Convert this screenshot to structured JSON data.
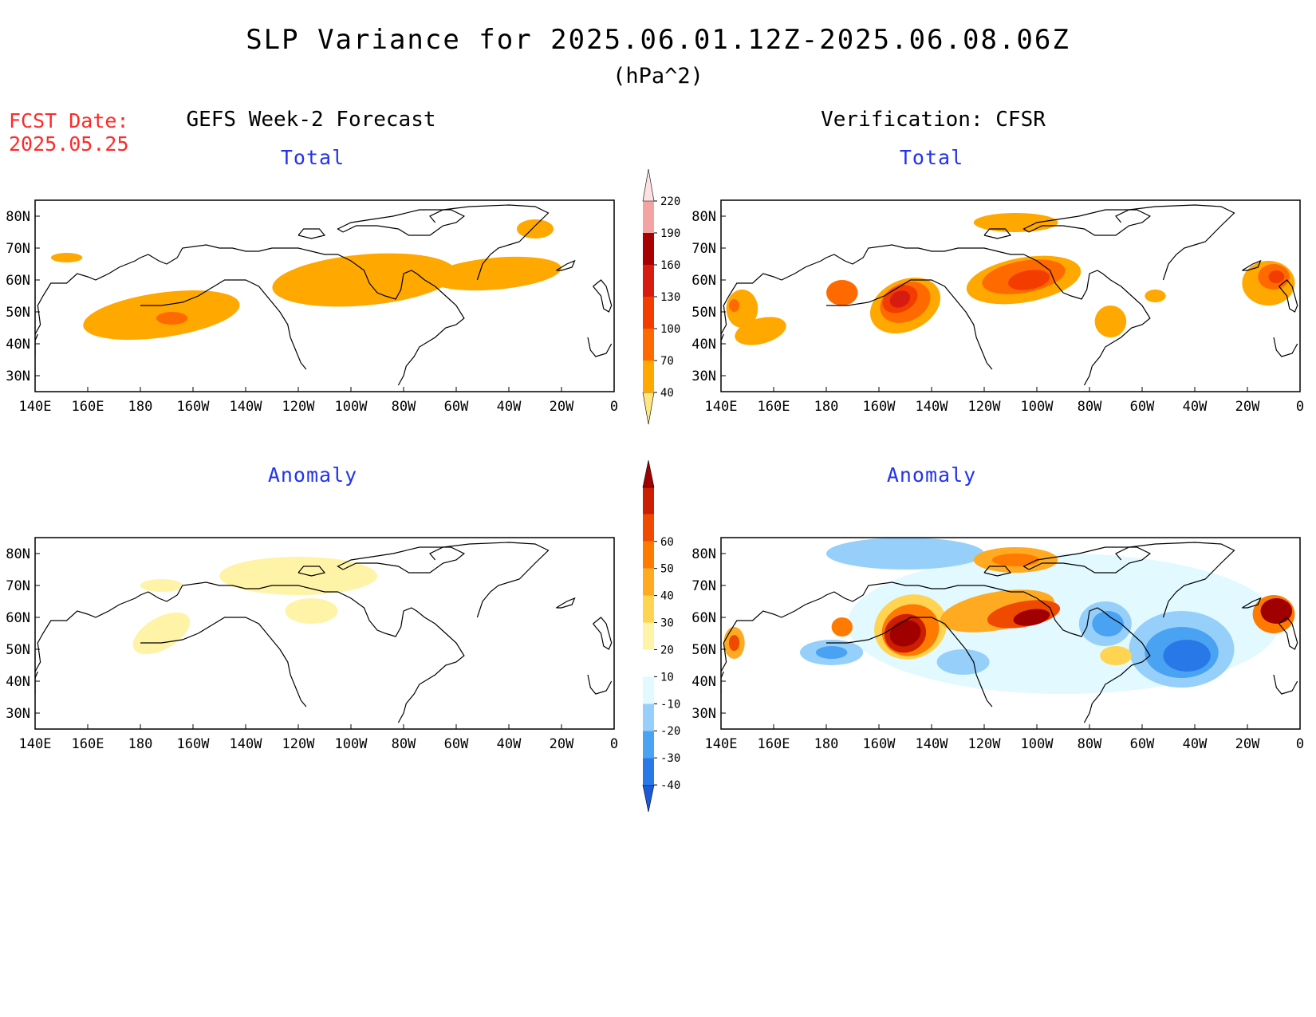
{
  "title": "SLP Variance for 2025.06.01.12Z-2025.06.08.06Z",
  "units": "(hPa^2)",
  "fcst_date": {
    "label": "FCST Date:",
    "value": "2025.05.25"
  },
  "columns": {
    "left": "GEFS Week-2 Forecast",
    "right": "Verification: CFSR"
  },
  "panel_titles": {
    "total": "Total",
    "anomaly": "Anomaly"
  },
  "lon_ticks": [
    "140E",
    "160E",
    "180",
    "160W",
    "140W",
    "120W",
    "100W",
    "80W",
    "60W",
    "40W",
    "20W",
    "0"
  ],
  "lat_ticks": [
    "80N",
    "70N",
    "60N",
    "50N",
    "40N",
    "30N"
  ],
  "colorbars": {
    "total": {
      "levels": [
        "40",
        "70",
        "100",
        "130",
        "160",
        "190",
        "220"
      ],
      "colors": [
        "#ffe680",
        "#ffa800",
        "#ff6a00",
        "#f23c00",
        "#d81b10",
        "#a80000",
        "#f4a3a3",
        "#fde0e0"
      ]
    },
    "anomaly": {
      "levels": [
        "-40",
        "-30",
        "-20",
        "-10",
        "10",
        "20",
        "30",
        "40",
        "50",
        "60"
      ],
      "colors": [
        "#1a5ad8",
        "#2878e8",
        "#4aa3f2",
        "#96d0fa",
        "#e1f9ff",
        "#ffffff",
        "#fff3a8",
        "#ffd450",
        "#ffaa20",
        "#ff7a00",
        "#ef4a00",
        "#cc1e00",
        "#a00000"
      ]
    }
  },
  "maps": {
    "gefs_total": {
      "blobs": [
        {
          "lon": -172,
          "lat": 49,
          "rx": 30,
          "ry": 7,
          "rot": -8,
          "level": 1
        },
        {
          "lon": -168,
          "lat": 48,
          "rx": 6,
          "ry": 2,
          "rot": 0,
          "level": 2
        },
        {
          "lon": -95,
          "lat": 60,
          "rx": 35,
          "ry": 8,
          "rot": -5,
          "level": 1
        },
        {
          "lon": -45,
          "lat": 62,
          "rx": 25,
          "ry": 5,
          "rot": -5,
          "level": 1
        },
        {
          "lon": -30,
          "lat": 76,
          "rx": 7,
          "ry": 3,
          "rot": 0,
          "level": 1
        },
        {
          "lon": 152,
          "lat": 67,
          "rx": 6,
          "ry": 1.5,
          "rot": 0,
          "level": 1
        }
      ]
    },
    "cfsr_total": {
      "blobs": [
        {
          "lon": -150,
          "lat": 52,
          "rx": 14,
          "ry": 8,
          "rot": -25,
          "level": 1
        },
        {
          "lon": -150,
          "lat": 53,
          "rx": 10,
          "ry": 6,
          "rot": -25,
          "level": 2
        },
        {
          "lon": -152,
          "lat": 54,
          "rx": 7,
          "ry": 4,
          "rot": -25,
          "level": 3
        },
        {
          "lon": -152,
          "lat": 54,
          "rx": 4,
          "ry": 2.5,
          "rot": -25,
          "level": 4
        },
        {
          "lon": -105,
          "lat": 60,
          "rx": 22,
          "ry": 7,
          "rot": -10,
          "level": 1
        },
        {
          "lon": -105,
          "lat": 61,
          "rx": 16,
          "ry": 5,
          "rot": -10,
          "level": 2
        },
        {
          "lon": -103,
          "lat": 60,
          "rx": 8,
          "ry": 3,
          "rot": -10,
          "level": 3
        },
        {
          "lon": -108,
          "lat": 78,
          "rx": 16,
          "ry": 3,
          "rot": 0,
          "level": 1
        },
        {
          "lon": -174,
          "lat": 56,
          "rx": 6,
          "ry": 4,
          "rot": 0,
          "level": 2
        },
        {
          "lon": 148,
          "lat": 51,
          "rx": 6,
          "ry": 6,
          "rot": 0,
          "level": 1
        },
        {
          "lon": 145,
          "lat": 52,
          "rx": 2,
          "ry": 2,
          "rot": 0,
          "level": 2
        },
        {
          "lon": 155,
          "lat": 44,
          "rx": 10,
          "ry": 4,
          "rot": -15,
          "level": 1
        },
        {
          "lon": -12,
          "lat": 59,
          "rx": 10,
          "ry": 7,
          "rot": 0,
          "level": 1
        },
        {
          "lon": -10,
          "lat": 61,
          "rx": 6,
          "ry": 4,
          "rot": 0,
          "level": 2
        },
        {
          "lon": -9,
          "lat": 61,
          "rx": 3,
          "ry": 2,
          "rot": 0,
          "level": 3
        },
        {
          "lon": -72,
          "lat": 47,
          "rx": 6,
          "ry": 5,
          "rot": 0,
          "level": 1
        },
        {
          "lon": -55,
          "lat": 55,
          "rx": 4,
          "ry": 2,
          "rot": 0,
          "level": 1
        }
      ]
    },
    "gefs_anomaly": {
      "blobs": [
        {
          "lon": -120,
          "lat": 73,
          "rx": 30,
          "ry": 6,
          "rot": 0,
          "level": 6
        },
        {
          "lon": -115,
          "lat": 62,
          "rx": 10,
          "ry": 4,
          "rot": 0,
          "level": 6
        },
        {
          "lon": -172,
          "lat": 55,
          "rx": 12,
          "ry": 5,
          "rot": -30,
          "level": 6
        },
        {
          "lon": -172,
          "lat": 70,
          "rx": 8,
          "ry": 2,
          "rot": 0,
          "level": 6
        }
      ]
    },
    "cfsr_anomaly": {
      "blobs": [
        {
          "lon": -90,
          "lat": 58,
          "rx": 82,
          "ry": 22,
          "rot": 0,
          "level": 4
        },
        {
          "lon": -45,
          "lat": 50,
          "rx": 20,
          "ry": 12,
          "rot": 0,
          "level": 3
        },
        {
          "lon": -45,
          "lat": 49,
          "rx": 14,
          "ry": 8,
          "rot": 0,
          "level": 2
        },
        {
          "lon": -43,
          "lat": 48,
          "rx": 9,
          "ry": 5,
          "rot": 0,
          "level": 1
        },
        {
          "lon": -74,
          "lat": 58,
          "rx": 10,
          "ry": 7,
          "rot": 0,
          "level": 3
        },
        {
          "lon": -73,
          "lat": 58,
          "rx": 6,
          "ry": 4,
          "rot": 0,
          "level": 2
        },
        {
          "lon": -150,
          "lat": 80,
          "rx": 30,
          "ry": 5,
          "rot": 0,
          "level": 3
        },
        {
          "lon": -178,
          "lat": 49,
          "rx": 12,
          "ry": 4,
          "rot": 0,
          "level": 3
        },
        {
          "lon": -178,
          "lat": 49,
          "rx": 6,
          "ry": 2,
          "rot": 0,
          "level": 2
        },
        {
          "lon": -128,
          "lat": 46,
          "rx": 10,
          "ry": 4,
          "rot": 0,
          "level": 3
        },
        {
          "lon": -148,
          "lat": 57,
          "rx": 14,
          "ry": 10,
          "rot": -20,
          "level": 7
        },
        {
          "lon": -148,
          "lat": 56,
          "rx": 11,
          "ry": 8,
          "rot": -20,
          "level": 9
        },
        {
          "lon": -150,
          "lat": 55,
          "rx": 8,
          "ry": 6,
          "rot": -20,
          "level": 11
        },
        {
          "lon": -150,
          "lat": 55,
          "rx": 6,
          "ry": 4,
          "rot": -20,
          "level": 12
        },
        {
          "lon": -115,
          "lat": 62,
          "rx": 22,
          "ry": 6,
          "rot": -10,
          "level": 8
        },
        {
          "lon": -105,
          "lat": 61,
          "rx": 14,
          "ry": 4,
          "rot": -10,
          "level": 10
        },
        {
          "lon": -102,
          "lat": 60,
          "rx": 7,
          "ry": 2.5,
          "rot": -10,
          "level": 12
        },
        {
          "lon": -108,
          "lat": 78,
          "rx": 16,
          "ry": 4,
          "rot": 0,
          "level": 8
        },
        {
          "lon": -108,
          "lat": 78,
          "rx": 9,
          "ry": 2,
          "rot": 0,
          "level": 9
        },
        {
          "lon": -10,
          "lat": 61,
          "rx": 8,
          "ry": 6,
          "rot": 0,
          "level": 9
        },
        {
          "lon": -9,
          "lat": 62,
          "rx": 6,
          "ry": 4,
          "rot": 0,
          "level": 12
        },
        {
          "lon": 145,
          "lat": 52,
          "rx": 4,
          "ry": 5,
          "rot": 0,
          "level": 8
        },
        {
          "lon": 145,
          "lat": 52,
          "rx": 2,
          "ry": 2.5,
          "rot": 0,
          "level": 10
        },
        {
          "lon": -174,
          "lat": 57,
          "rx": 4,
          "ry": 3,
          "rot": 0,
          "level": 9
        },
        {
          "lon": -70,
          "lat": 48,
          "rx": 6,
          "ry": 3,
          "rot": 0,
          "level": 7
        }
      ]
    }
  }
}
